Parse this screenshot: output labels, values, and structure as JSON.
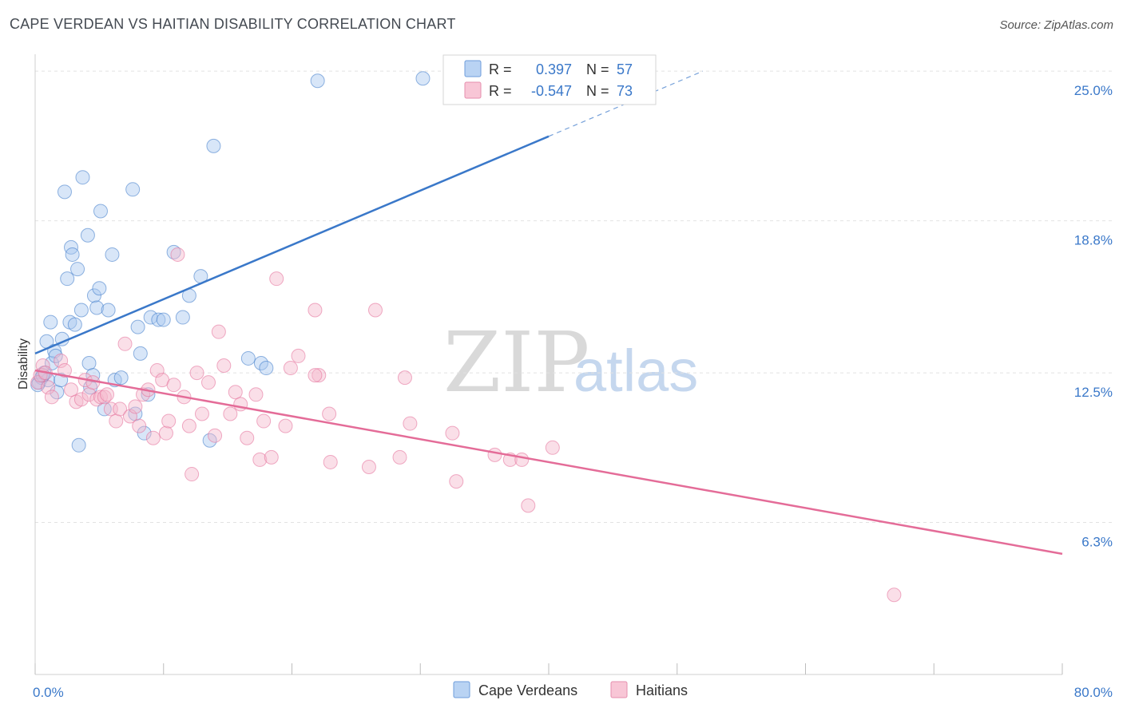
{
  "title": "CAPE VERDEAN VS HAITIAN DISABILITY CORRELATION CHART",
  "source": "Source: ZipAtlas.com",
  "watermark": {
    "zip": "ZIP",
    "atlas": "atlas"
  },
  "colors": {
    "blue": "#3a78c9",
    "blue_fill": "#a9c8f0",
    "pink": "#e46c98",
    "pink_fill": "#f5b9cd",
    "grid": "#e2e2e2"
  },
  "legend": {
    "r_label": "R =",
    "n_label": "N =",
    "entries": [
      {
        "r": "0.397",
        "n": "57"
      },
      {
        "r": "-0.547",
        "n": "73"
      }
    ]
  },
  "chart_data": {
    "type": "scatter",
    "title": "CAPE VERDEAN VS HAITIAN DISABILITY CORRELATION CHART",
    "xlabel": "",
    "ylabel": "Disability",
    "xlim": [
      0,
      80
    ],
    "ylim": [
      0,
      25.7
    ],
    "x_tick_labels": [
      "0.0%",
      "80.0%"
    ],
    "y_ticks": [
      6.3,
      12.5,
      18.8,
      25.0
    ],
    "y_tick_labels": [
      "6.3%",
      "12.5%",
      "18.8%",
      "25.0%"
    ],
    "grid": true,
    "legend_position": "bottom",
    "series": [
      {
        "name": "Cape Verdeans",
        "color": "#3a78c9",
        "r": 0.397,
        "n": 57,
        "trend": {
          "x0": 0,
          "y0": 13.3,
          "x1": 40,
          "y1": 22.3,
          "dash_to_x": 52,
          "dash_to_y": 25.0
        },
        "points": [
          [
            0.3,
            12.1
          ],
          [
            0.5,
            12.3
          ],
          [
            0.7,
            12.5
          ],
          [
            0.9,
            13.8
          ],
          [
            1.0,
            12.2
          ],
          [
            1.2,
            14.6
          ],
          [
            1.3,
            12.9
          ],
          [
            1.5,
            13.4
          ],
          [
            1.6,
            13.2
          ],
          [
            1.7,
            11.7
          ],
          [
            2.0,
            12.2
          ],
          [
            2.1,
            13.9
          ],
          [
            2.3,
            20.0
          ],
          [
            2.5,
            16.4
          ],
          [
            2.7,
            14.6
          ],
          [
            2.8,
            17.7
          ],
          [
            2.9,
            17.4
          ],
          [
            3.1,
            14.5
          ],
          [
            3.3,
            16.8
          ],
          [
            3.4,
            9.5
          ],
          [
            3.6,
            15.1
          ],
          [
            3.7,
            20.6
          ],
          [
            4.1,
            18.2
          ],
          [
            4.2,
            12.9
          ],
          [
            4.3,
            11.9
          ],
          [
            4.5,
            12.4
          ],
          [
            4.6,
            15.7
          ],
          [
            4.8,
            15.2
          ],
          [
            5.0,
            16.0
          ],
          [
            5.1,
            19.2
          ],
          [
            5.4,
            11.0
          ],
          [
            5.7,
            15.1
          ],
          [
            6.0,
            17.4
          ],
          [
            6.2,
            12.2
          ],
          [
            6.7,
            12.3
          ],
          [
            7.6,
            20.1
          ],
          [
            7.8,
            10.8
          ],
          [
            8.0,
            14.4
          ],
          [
            8.2,
            13.3
          ],
          [
            8.5,
            10.0
          ],
          [
            8.8,
            11.6
          ],
          [
            9.0,
            14.8
          ],
          [
            9.6,
            14.7
          ],
          [
            10.0,
            14.7
          ],
          [
            10.8,
            17.5
          ],
          [
            11.5,
            14.8
          ],
          [
            12.0,
            15.7
          ],
          [
            12.9,
            16.5
          ],
          [
            13.6,
            9.7
          ],
          [
            13.9,
            21.9
          ],
          [
            16.6,
            13.1
          ],
          [
            17.6,
            12.9
          ],
          [
            18.0,
            12.7
          ],
          [
            22.0,
            24.6
          ],
          [
            30.2,
            24.7
          ],
          [
            0.2,
            12.0
          ],
          [
            0.6,
            12.4
          ]
        ]
      },
      {
        "name": "Haitians",
        "color": "#e46c98",
        "r": -0.547,
        "n": 73,
        "trend": {
          "x0": 0,
          "y0": 12.6,
          "x1": 80,
          "y1": 5.0
        },
        "points": [
          [
            0.2,
            12.1
          ],
          [
            0.4,
            12.4
          ],
          [
            0.6,
            12.8
          ],
          [
            0.8,
            12.5
          ],
          [
            1.0,
            11.9
          ],
          [
            1.3,
            11.5
          ],
          [
            2.0,
            13.0
          ],
          [
            2.3,
            12.6
          ],
          [
            2.8,
            11.8
          ],
          [
            3.2,
            11.3
          ],
          [
            3.6,
            11.4
          ],
          [
            3.9,
            12.2
          ],
          [
            4.2,
            11.6
          ],
          [
            4.5,
            12.1
          ],
          [
            4.8,
            11.4
          ],
          [
            5.1,
            11.5
          ],
          [
            5.4,
            11.5
          ],
          [
            5.6,
            11.6
          ],
          [
            5.9,
            11.0
          ],
          [
            6.3,
            10.5
          ],
          [
            6.6,
            11.0
          ],
          [
            7.0,
            13.7
          ],
          [
            7.4,
            10.7
          ],
          [
            7.8,
            11.1
          ],
          [
            8.1,
            10.3
          ],
          [
            8.4,
            11.6
          ],
          [
            8.8,
            11.8
          ],
          [
            9.2,
            9.8
          ],
          [
            9.5,
            12.6
          ],
          [
            9.9,
            12.2
          ],
          [
            10.2,
            10.0
          ],
          [
            10.4,
            10.5
          ],
          [
            10.8,
            12.0
          ],
          [
            11.1,
            17.4
          ],
          [
            11.6,
            11.5
          ],
          [
            12.0,
            10.3
          ],
          [
            12.2,
            8.3
          ],
          [
            12.6,
            12.5
          ],
          [
            13.0,
            10.8
          ],
          [
            13.5,
            12.1
          ],
          [
            14.0,
            9.9
          ],
          [
            14.3,
            14.2
          ],
          [
            14.7,
            12.8
          ],
          [
            15.2,
            10.8
          ],
          [
            15.6,
            11.7
          ],
          [
            16.0,
            11.2
          ],
          [
            16.5,
            9.8
          ],
          [
            17.2,
            11.6
          ],
          [
            17.5,
            8.9
          ],
          [
            17.8,
            10.5
          ],
          [
            18.4,
            9.0
          ],
          [
            18.8,
            16.4
          ],
          [
            19.5,
            10.3
          ],
          [
            19.9,
            12.7
          ],
          [
            20.5,
            13.2
          ],
          [
            21.8,
            15.1
          ],
          [
            22.1,
            12.4
          ],
          [
            22.9,
            10.8
          ],
          [
            23.0,
            8.8
          ],
          [
            26.0,
            8.6
          ],
          [
            26.5,
            15.1
          ],
          [
            28.4,
            9.0
          ],
          [
            28.8,
            12.3
          ],
          [
            29.2,
            10.4
          ],
          [
            32.5,
            10.0
          ],
          [
            32.8,
            8.0
          ],
          [
            35.8,
            9.1
          ],
          [
            37.0,
            8.9
          ],
          [
            37.9,
            8.9
          ],
          [
            38.4,
            7.0
          ],
          [
            40.3,
            9.4
          ],
          [
            66.9,
            3.3
          ],
          [
            21.8,
            12.4
          ]
        ]
      }
    ]
  }
}
